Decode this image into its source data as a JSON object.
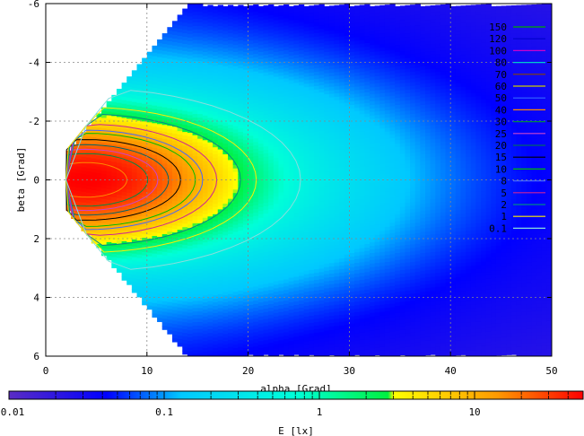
{
  "chart_data": {
    "type": "heatmap",
    "title": "",
    "xlabel": "alpha [Grad]",
    "ylabel": "beta [Grad]",
    "xlim": [
      0,
      50
    ],
    "ylim": [
      6,
      -6
    ],
    "x_ticks": [
      "0",
      "10",
      "20",
      "30",
      "40",
      "50"
    ],
    "y_ticks": [
      "-6",
      "-4",
      "-2",
      "0",
      "2",
      "4",
      "6"
    ],
    "grid": true,
    "colorbar": {
      "label": "E [lx]",
      "scale": "log",
      "range": [
        0.01,
        50
      ],
      "ticks": [
        "0.01",
        "0.1",
        "1",
        "10"
      ]
    },
    "contour_levels": [
      {
        "label": "150",
        "color": "#00aa00"
      },
      {
        "label": "120",
        "color": "#0000cc"
      },
      {
        "label": "100",
        "color": "#cc00cc"
      },
      {
        "label": "80",
        "color": "#00cccc"
      },
      {
        "label": "70",
        "color": "#884400"
      },
      {
        "label": "60",
        "color": "#cccc00"
      },
      {
        "label": "50",
        "color": "#3366ff"
      },
      {
        "label": "40",
        "color": "#ff8800"
      },
      {
        "label": "30",
        "color": "#008844"
      },
      {
        "label": "25",
        "color": "#cc44cc"
      },
      {
        "label": "20",
        "color": "#006666"
      },
      {
        "label": "15",
        "color": "#000000"
      },
      {
        "label": "10",
        "color": "#00bb00"
      },
      {
        "label": "8",
        "color": "#4466ff"
      },
      {
        "label": "5",
        "color": "#cc2299"
      },
      {
        "label": "2",
        "color": "#008888"
      },
      {
        "label": "1",
        "color": "#ffee00"
      },
      {
        "label": "0.1",
        "color": "#88dddd"
      }
    ],
    "peak": {
      "alpha": 4,
      "beta": 0,
      "E": 50
    },
    "beam_edge": {
      "slope_beta_per_alpha": 0.42,
      "alpha_start": 2,
      "beta_start": 1
    },
    "sector_steps_alpha": [
      15.5,
      16.5,
      17.5,
      18.5,
      19.5,
      21,
      22.5,
      24,
      25.5,
      27.5,
      30,
      32,
      34.5,
      37,
      40,
      44,
      50
    ]
  },
  "legend_key_length_hint": 1
}
